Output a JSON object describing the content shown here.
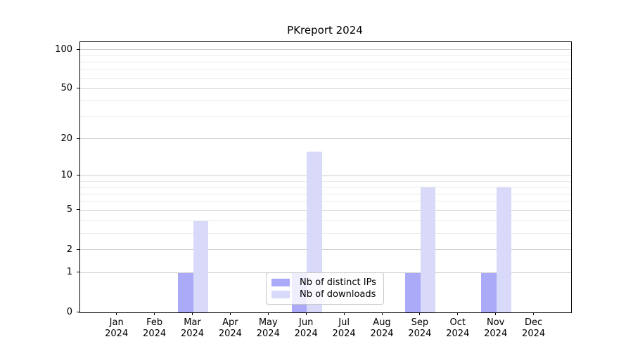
{
  "title": "PKreport 2024",
  "colors": {
    "distinct_ips": "#aaaaf8",
    "downloads": "#d9d9fa",
    "major_grid": "#cfcfcf",
    "minor_grid": "#ebebeb",
    "axis": "#000000"
  },
  "legend": {
    "items": [
      {
        "label": "Nb of distinct IPs",
        "color_key": "distinct_ips"
      },
      {
        "label": "Nb of downloads",
        "color_key": "downloads"
      }
    ]
  },
  "chart_data": {
    "type": "bar",
    "title": "PKreport 2024",
    "scale": "log1p",
    "categories": [
      {
        "month": "Jan",
        "year": "2024"
      },
      {
        "month": "Feb",
        "year": "2024"
      },
      {
        "month": "Mar",
        "year": "2024"
      },
      {
        "month": "Apr",
        "year": "2024"
      },
      {
        "month": "May",
        "year": "2024"
      },
      {
        "month": "Jun",
        "year": "2024"
      },
      {
        "month": "Jul",
        "year": "2024"
      },
      {
        "month": "Aug",
        "year": "2024"
      },
      {
        "month": "Sep",
        "year": "2024"
      },
      {
        "month": "Oct",
        "year": "2024"
      },
      {
        "month": "Nov",
        "year": "2024"
      },
      {
        "month": "Dec",
        "year": "2024"
      }
    ],
    "series": [
      {
        "name": "Nb of distinct IPs",
        "color_key": "distinct_ips",
        "values": [
          0,
          0,
          1,
          0,
          0,
          1,
          0,
          0,
          1,
          0,
          1,
          0
        ]
      },
      {
        "name": "Nb of downloads",
        "color_key": "downloads",
        "values": [
          0,
          0,
          4,
          0,
          0,
          16,
          0,
          0,
          8,
          0,
          8,
          0
        ]
      }
    ],
    "y_ticks": [
      0,
      1,
      2,
      5,
      10,
      20,
      50,
      100
    ],
    "y_minor_ticks": [
      3,
      4,
      6,
      7,
      8,
      9,
      30,
      40,
      60,
      70,
      80,
      90
    ],
    "ylim": [
      0,
      115
    ],
    "xlabel": "",
    "ylabel": "",
    "grid": "on",
    "legend_position": "bottom-center-inside"
  }
}
